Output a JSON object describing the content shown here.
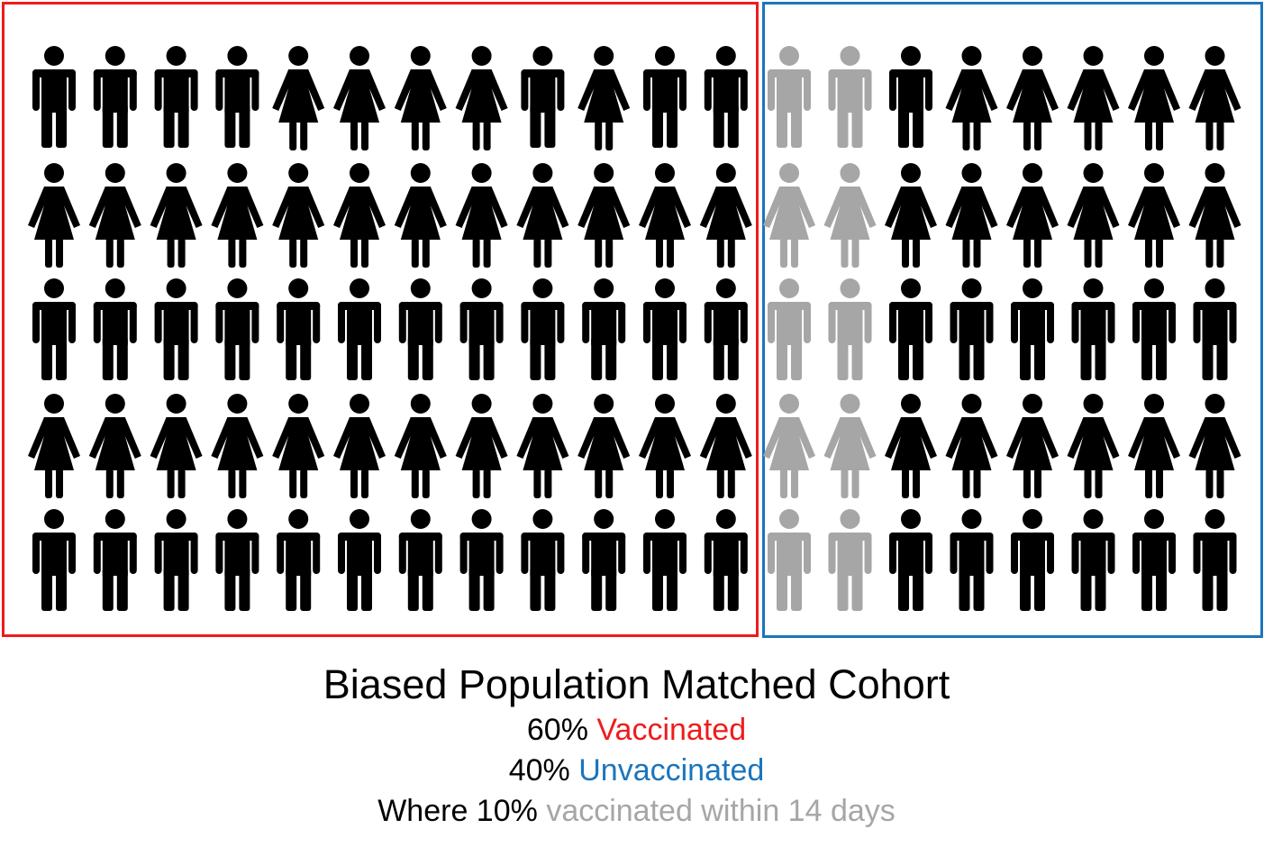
{
  "colors": {
    "vaccinated": "#ee1c1c",
    "unvaccinated": "#1b75bc",
    "recent": "#a6a6a6",
    "figure": "#000000",
    "text": "#000000"
  },
  "groups": {
    "vaccinated": {
      "rows": [
        [
          "male",
          "male",
          "male",
          "male",
          "female",
          "female",
          "female",
          "female",
          "male",
          "female",
          "male",
          "male"
        ],
        [
          "female",
          "female",
          "female",
          "female",
          "female",
          "female",
          "female",
          "female",
          "female",
          "female",
          "female",
          "female"
        ],
        [
          "male",
          "male",
          "male",
          "male",
          "male",
          "male",
          "male",
          "male",
          "male",
          "male",
          "male",
          "male"
        ],
        [
          "female",
          "female",
          "female",
          "female",
          "female",
          "female",
          "female",
          "female",
          "female",
          "female",
          "female",
          "female"
        ],
        [
          "male",
          "male",
          "male",
          "male",
          "male",
          "male",
          "male",
          "male",
          "male",
          "male",
          "male",
          "male"
        ]
      ]
    },
    "unvaccinated": {
      "rows": [
        [
          "male",
          "male",
          "male",
          "female",
          "female",
          "female",
          "female",
          "female"
        ],
        [
          "female",
          "female",
          "female",
          "female",
          "female",
          "female",
          "female",
          "female"
        ],
        [
          "male",
          "male",
          "male",
          "male",
          "male",
          "male",
          "male",
          "male"
        ],
        [
          "female",
          "female",
          "female",
          "female",
          "female",
          "female",
          "female",
          "female"
        ],
        [
          "male",
          "male",
          "male",
          "male",
          "male",
          "male",
          "male",
          "male"
        ]
      ],
      "recent_columns": 2
    }
  },
  "caption": {
    "title": "Biased Population Matched Cohort",
    "line1_value": "60%",
    "line1_label": "Vaccinated",
    "line2_value": "40%",
    "line2_label": "Unvaccinated",
    "line3_prefix": "Where 10%",
    "line3_label": "vaccinated within 14 days"
  }
}
